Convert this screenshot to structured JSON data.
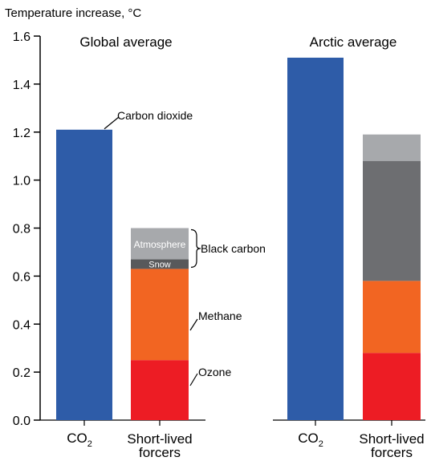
{
  "chart_data": {
    "type": "bar",
    "stacked": true,
    "ylabel": "Temperature increase, °C",
    "ylim": [
      0,
      1.6
    ],
    "yticks": [
      "0.0",
      "0.2",
      "0.4",
      "0.6",
      "0.8",
      "1.0",
      "1.2",
      "1.4",
      "1.6"
    ],
    "grid": false,
    "panels": [
      {
        "title": "Global average",
        "bars": [
          {
            "category": {
              "main": "CO",
              "sub": "2"
            },
            "segments": [
              {
                "label": "Carbon dioxide",
                "value": 1.21,
                "color": "#2e5ca8"
              }
            ]
          },
          {
            "category": {
              "line1": "Short-lived",
              "line2": "forcers"
            },
            "segments": [
              {
                "label": "Ozone",
                "value": 0.25,
                "color": "#ed1c24"
              },
              {
                "label": "Methane",
                "value": 0.38,
                "color": "#f26522"
              },
              {
                "label": "Snow",
                "value": 0.04,
                "color": "#58595b"
              },
              {
                "label": "Atmosphere",
                "value": 0.13,
                "color": "#a7a9ac"
              }
            ]
          }
        ]
      },
      {
        "title": "Arctic average",
        "bars": [
          {
            "category": {
              "main": "CO",
              "sub": "2"
            },
            "segments": [
              {
                "label": "Carbon dioxide",
                "value": 1.51,
                "color": "#2e5ca8"
              }
            ]
          },
          {
            "category": {
              "line1": "Short-lived",
              "line2": "forcers"
            },
            "segments": [
              {
                "label": "Ozone",
                "value": 0.28,
                "color": "#ed1c24"
              },
              {
                "label": "Methane",
                "value": 0.3,
                "color": "#f26522"
              },
              {
                "label": "Snow",
                "value": 0.5,
                "color": "#6d6e71"
              },
              {
                "label": "Atmosphere",
                "value": 0.11,
                "color": "#a7a9ac"
              }
            ]
          }
        ]
      }
    ],
    "annotations": {
      "carbon_dioxide": "Carbon dioxide",
      "black_carbon": "Black carbon",
      "methane": "Methane",
      "ozone": "Ozone"
    }
  }
}
